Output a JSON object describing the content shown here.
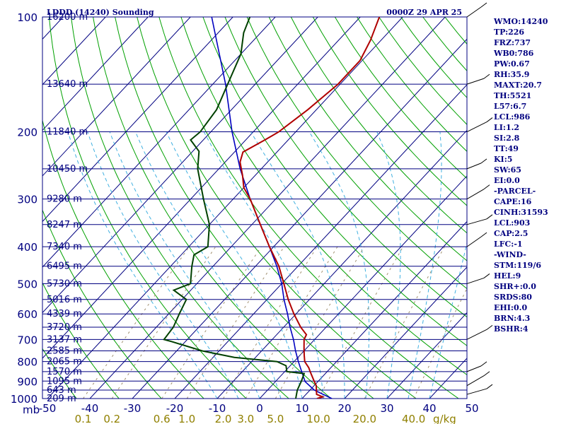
{
  "header": {
    "title": "LDDD (14240) Sounding",
    "time": "0000Z 29 APR 25"
  },
  "indices": [
    "WMO:14240",
    "TP:226",
    "FRZ:737",
    "WB0:786",
    "PW:0.67",
    "RH:35.9",
    "MAXT:20.7",
    "TH:5521",
    "L57:6.7",
    "LCL:986",
    "LI:1.2",
    "SI:2.8",
    "TT:49",
    "KI:5",
    "SW:65",
    "EI:0.0",
    "-PARCEL-",
    "CAPE:16",
    "CINH:31593",
    "LCL:903",
    "CAP:2.5",
    "LFC:-1",
    "-WIND-",
    "STM:119/6",
    "HEL:9",
    "SHR+:0.0",
    "SRDS:80",
    "EHI:0.0",
    "BRN:4.3",
    "BSHR:4"
  ],
  "chart_data": {
    "type": "skew-t",
    "pressure_range": [
      1000,
      100
    ],
    "temperature_range": [
      -50,
      50
    ],
    "pressure_tick_labels": [
      "100",
      "200",
      "300",
      "400",
      "500",
      "600",
      "700",
      "800",
      "900",
      "1000"
    ],
    "pressure_unit_label": "mb",
    "temperature_tick_labels": [
      "-50",
      "-40",
      "-30",
      "-20",
      "-10",
      "0",
      "10",
      "20",
      "30",
      "40",
      "50"
    ],
    "mixing_ratio_labels": [
      "0.1",
      "0.2",
      "0.6",
      "1.0",
      "2.0",
      "3.0",
      "5.0",
      "10.0",
      "20.0",
      "40.0"
    ],
    "mixing_ratio_unit": "g/kg",
    "height_labels": [
      {
        "p": 100,
        "text": "16200 m"
      },
      {
        "p": 150,
        "text": "13640 m"
      },
      {
        "p": 200,
        "text": "11840 m"
      },
      {
        "p": 250,
        "text": "10450 m"
      },
      {
        "p": 300,
        "text": "9280 m"
      },
      {
        "p": 350,
        "text": "8247 m"
      },
      {
        "p": 400,
        "text": "7340 m"
      },
      {
        "p": 450,
        "text": "6495 m"
      },
      {
        "p": 500,
        "text": "5730 m"
      },
      {
        "p": 550,
        "text": "5016 m"
      },
      {
        "p": 600,
        "text": "4339 m"
      },
      {
        "p": 650,
        "text": "3720 m"
      },
      {
        "p": 700,
        "text": "3137 m"
      },
      {
        "p": 750,
        "text": "2585 m"
      },
      {
        "p": 800,
        "text": "2065 m"
      },
      {
        "p": 850,
        "text": "1570 m"
      },
      {
        "p": 900,
        "text": "1095 m"
      },
      {
        "p": 950,
        "text": "643 m"
      },
      {
        "p": 1000,
        "text": "209 m"
      }
    ],
    "temperature_profile": [
      {
        "p": 1000,
        "t": 13.5
      },
      {
        "p": 990,
        "t": 14.5
      },
      {
        "p": 975,
        "t": 12.5
      },
      {
        "p": 950,
        "t": 11.5
      },
      {
        "p": 925,
        "t": 10.5
      },
      {
        "p": 900,
        "t": 9.0
      },
      {
        "p": 850,
        "t": 6.0
      },
      {
        "p": 830,
        "t": 4.8
      },
      {
        "p": 800,
        "t": 2.5
      },
      {
        "p": 770,
        "t": 1.0
      },
      {
        "p": 740,
        "t": -0.5
      },
      {
        "p": 700,
        "t": -2.5
      },
      {
        "p": 680,
        "t": -3.0
      },
      {
        "p": 650,
        "t": -6.0
      },
      {
        "p": 600,
        "t": -10.5
      },
      {
        "p": 550,
        "t": -15.0
      },
      {
        "p": 500,
        "t": -19.5
      },
      {
        "p": 450,
        "t": -24.5
      },
      {
        "p": 400,
        "t": -31.0
      },
      {
        "p": 350,
        "t": -38.0
      },
      {
        "p": 300,
        "t": -46.0
      },
      {
        "p": 280,
        "t": -50.0
      },
      {
        "p": 260,
        "t": -53.0
      },
      {
        "p": 240,
        "t": -56.5
      },
      {
        "p": 226,
        "t": -58.0
      },
      {
        "p": 210,
        "t": -55.5
      },
      {
        "p": 200,
        "t": -54.0
      },
      {
        "p": 175,
        "t": -52.0
      },
      {
        "p": 150,
        "t": -50.5
      },
      {
        "p": 130,
        "t": -50.5
      },
      {
        "p": 115,
        "t": -52.5
      },
      {
        "p": 100,
        "t": -55.5
      }
    ],
    "dewpoint_profile": [
      {
        "p": 1000,
        "t": 8.5
      },
      {
        "p": 950,
        "t": 7.0
      },
      {
        "p": 900,
        "t": 6.0
      },
      {
        "p": 860,
        "t": 5.0
      },
      {
        "p": 850,
        "t": 0.5
      },
      {
        "p": 820,
        "t": -1.0
      },
      {
        "p": 800,
        "t": -4.0
      },
      {
        "p": 780,
        "t": -15.0
      },
      {
        "p": 750,
        "t": -24.0
      },
      {
        "p": 710,
        "t": -33.0
      },
      {
        "p": 700,
        "t": -35.5
      },
      {
        "p": 650,
        "t": -36.0
      },
      {
        "p": 600,
        "t": -37.5
      },
      {
        "p": 550,
        "t": -39.0
      },
      {
        "p": 520,
        "t": -44.0
      },
      {
        "p": 500,
        "t": -41.5
      },
      {
        "p": 450,
        "t": -45.0
      },
      {
        "p": 420,
        "t": -47.0
      },
      {
        "p": 400,
        "t": -45.5
      },
      {
        "p": 350,
        "t": -50.0
      },
      {
        "p": 300,
        "t": -57.0
      },
      {
        "p": 250,
        "t": -65.0
      },
      {
        "p": 225,
        "t": -68.5
      },
      {
        "p": 210,
        "t": -73.0
      },
      {
        "p": 200,
        "t": -72.5
      },
      {
        "p": 175,
        "t": -73.5
      },
      {
        "p": 150,
        "t": -76.5
      },
      {
        "p": 125,
        "t": -80.0
      },
      {
        "p": 110,
        "t": -84.0
      },
      {
        "p": 100,
        "t": -86.0
      }
    ],
    "parcel_profile": [
      {
        "p": 1000,
        "t": 17.0
      },
      {
        "p": 950,
        "t": 11.0
      },
      {
        "p": 903,
        "t": 7.0
      },
      {
        "p": 850,
        "t": 4.0
      },
      {
        "p": 800,
        "t": 1.0
      },
      {
        "p": 750,
        "t": -2.0
      },
      {
        "p": 700,
        "t": -5.0
      },
      {
        "p": 650,
        "t": -8.5
      },
      {
        "p": 600,
        "t": -12.0
      },
      {
        "p": 550,
        "t": -16.0
      },
      {
        "p": 500,
        "t": -20.0
      },
      {
        "p": 450,
        "t": -25.0
      },
      {
        "p": 400,
        "t": -31.0
      },
      {
        "p": 350,
        "t": -38.0
      },
      {
        "p": 300,
        "t": -46.0
      },
      {
        "p": 250,
        "t": -55.0
      },
      {
        "p": 200,
        "t": -65.0
      },
      {
        "p": 150,
        "t": -77.0
      },
      {
        "p": 100,
        "t": -95.0
      }
    ],
    "colors": {
      "temperature": "#b00000",
      "dewpoint": "#004000",
      "parcel": "#0000c0",
      "isobar": "#000080",
      "isotherm": "#000080",
      "dry_adiabat": "#00a000",
      "moist_adiabat": "#40b0e0",
      "mixing_ratio": "#a09070",
      "mixing_label": "#908000",
      "text": "#000080",
      "wind_barb": "#000000"
    }
  }
}
